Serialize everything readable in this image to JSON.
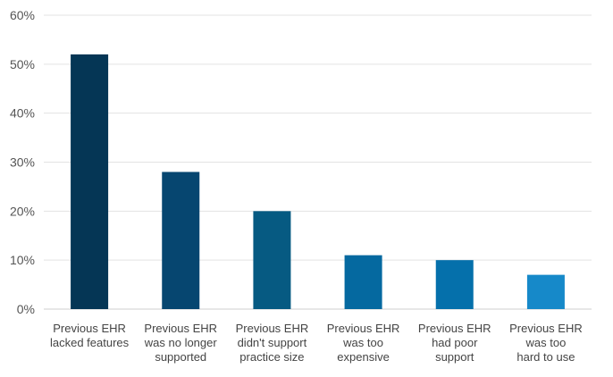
{
  "chart_data": {
    "type": "bar",
    "title": "",
    "xlabel": "",
    "ylabel": "",
    "ylim": [
      0,
      60
    ],
    "yticks": [
      0,
      10,
      20,
      30,
      40,
      50,
      60
    ],
    "ytick_labels": [
      "0%",
      "10%",
      "20%",
      "30%",
      "40%",
      "50%",
      "60%"
    ],
    "grid": true,
    "legend": "none",
    "categories": [
      [
        "Previous EHR",
        "lacked features"
      ],
      [
        "Previous EHR",
        "was no longer",
        "supported"
      ],
      [
        "Previous EHR",
        "didn't support",
        "practice size"
      ],
      [
        "Previous EHR",
        "was too",
        "expensive"
      ],
      [
        "Previous EHR",
        "had poor",
        "support"
      ],
      [
        "Previous EHR",
        "was too",
        "hard to use"
      ]
    ],
    "values": [
      52,
      28,
      20,
      11,
      10,
      7
    ],
    "colors": [
      "#053655",
      "#064670",
      "#065a82",
      "#0569a0",
      "#0570ab",
      "#1689c9"
    ]
  }
}
